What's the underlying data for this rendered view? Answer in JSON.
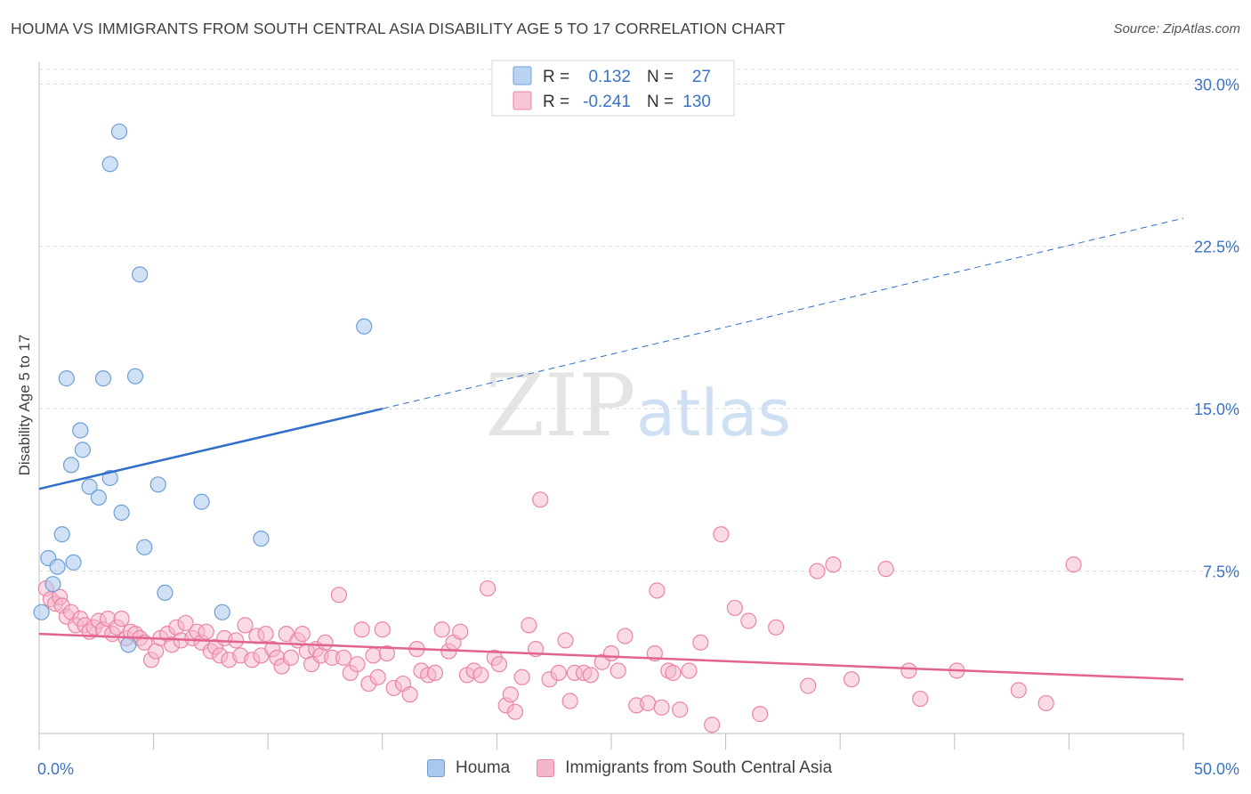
{
  "title": "HOUMA VS IMMIGRANTS FROM SOUTH CENTRAL ASIA DISABILITY AGE 5 TO 17 CORRELATION CHART",
  "source": "Source: ZipAtlas.com",
  "watermark": {
    "zip": "ZIP",
    "atlas": "atlas"
  },
  "colors": {
    "blue_fill": "#a9c8ee",
    "blue_stroke": "#6f9fd6",
    "blue_line": "#2f6fc9",
    "pink_fill": "#f5b6ca",
    "pink_stroke": "#ea85a6",
    "pink_line": "#e2638e",
    "value_text": "#3b73c4",
    "grid": "#d9d9d9"
  },
  "legend_stats": {
    "r_label": "R =",
    "n_label": "N =",
    "rows": [
      {
        "r": "0.132",
        "n": "27",
        "color": "blue"
      },
      {
        "r": "-0.241",
        "n": "130",
        "color": "pink"
      }
    ]
  },
  "legend_bottom": [
    "Houma",
    "Immigrants from South Central Asia"
  ],
  "chart_data": {
    "type": "scatter",
    "title": "HOUMA VS IMMIGRANTS FROM SOUTH CENTRAL ASIA DISABILITY AGE 5 TO 17 CORRELATION CHART",
    "xlabel": "",
    "ylabel": "Disability Age 5 to 17",
    "xlim": [
      0,
      50
    ],
    "ylim": [
      0,
      31
    ],
    "x_tick_labels": [
      "0.0%",
      "50.0%"
    ],
    "y_ticks": [
      7.5,
      15.0,
      22.5,
      30.0
    ],
    "y_tick_labels": [
      "7.5%",
      "15.0%",
      "22.5%",
      "30.0%"
    ],
    "grid": "horizontal dashed",
    "legend_placement": "top-center",
    "series": [
      {
        "name": "Houma",
        "color": "#a9c8ee",
        "trend": {
          "x0": 0,
          "y0": 11.3,
          "x1": 15,
          "y1": 15.0,
          "dashed_to_x": 50,
          "dashed_to_y": 23.8
        },
        "points": [
          [
            3.5,
            27.8
          ],
          [
            3.1,
            26.3
          ],
          [
            4.4,
            21.2
          ],
          [
            14.2,
            18.8
          ],
          [
            1.2,
            16.4
          ],
          [
            2.8,
            16.4
          ],
          [
            4.2,
            16.5
          ],
          [
            1.8,
            14.0
          ],
          [
            1.9,
            13.1
          ],
          [
            1.4,
            12.4
          ],
          [
            2.2,
            11.4
          ],
          [
            3.1,
            11.8
          ],
          [
            5.2,
            11.5
          ],
          [
            2.6,
            10.9
          ],
          [
            7.1,
            10.7
          ],
          [
            3.6,
            10.2
          ],
          [
            1.0,
            9.2
          ],
          [
            9.7,
            9.0
          ],
          [
            4.6,
            8.6
          ],
          [
            0.4,
            8.1
          ],
          [
            1.5,
            7.9
          ],
          [
            0.8,
            7.7
          ],
          [
            5.5,
            6.5
          ],
          [
            0.6,
            6.9
          ],
          [
            8.0,
            5.6
          ],
          [
            0.1,
            5.6
          ],
          [
            3.9,
            4.1
          ]
        ]
      },
      {
        "name": "Immigrants from South Central Asia",
        "color": "#f5b6ca",
        "trend": {
          "x0": 0,
          "y0": 4.6,
          "x1": 50,
          "y1": 2.5
        },
        "points": [
          [
            0.3,
            6.7
          ],
          [
            0.5,
            6.2
          ],
          [
            0.7,
            6.0
          ],
          [
            0.9,
            6.3
          ],
          [
            1.0,
            5.9
          ],
          [
            1.2,
            5.4
          ],
          [
            1.4,
            5.6
          ],
          [
            1.6,
            5.0
          ],
          [
            1.8,
            5.3
          ],
          [
            2.0,
            5.0
          ],
          [
            2.2,
            4.7
          ],
          [
            2.4,
            4.9
          ],
          [
            2.6,
            5.2
          ],
          [
            2.8,
            4.8
          ],
          [
            3.0,
            5.3
          ],
          [
            3.2,
            4.6
          ],
          [
            3.4,
            4.9
          ],
          [
            3.6,
            5.3
          ],
          [
            3.8,
            4.4
          ],
          [
            4.0,
            4.7
          ],
          [
            4.2,
            4.6
          ],
          [
            4.4,
            4.4
          ],
          [
            4.6,
            4.2
          ],
          [
            4.9,
            3.4
          ],
          [
            5.1,
            3.8
          ],
          [
            5.3,
            4.4
          ],
          [
            5.6,
            4.6
          ],
          [
            5.8,
            4.1
          ],
          [
            6.0,
            4.9
          ],
          [
            6.2,
            4.3
          ],
          [
            6.4,
            5.1
          ],
          [
            6.7,
            4.4
          ],
          [
            6.9,
            4.7
          ],
          [
            7.1,
            4.2
          ],
          [
            7.3,
            4.7
          ],
          [
            7.5,
            3.8
          ],
          [
            7.7,
            4.0
          ],
          [
            7.9,
            3.6
          ],
          [
            8.1,
            4.4
          ],
          [
            8.3,
            3.4
          ],
          [
            8.6,
            4.3
          ],
          [
            8.8,
            3.6
          ],
          [
            9.0,
            5.0
          ],
          [
            9.3,
            3.4
          ],
          [
            9.5,
            4.5
          ],
          [
            9.7,
            3.6
          ],
          [
            9.9,
            4.6
          ],
          [
            10.2,
            3.9
          ],
          [
            10.4,
            3.5
          ],
          [
            10.6,
            3.1
          ],
          [
            10.8,
            4.6
          ],
          [
            11.0,
            3.5
          ],
          [
            11.3,
            4.3
          ],
          [
            11.5,
            4.6
          ],
          [
            11.7,
            3.8
          ],
          [
            11.9,
            3.2
          ],
          [
            12.1,
            3.9
          ],
          [
            12.3,
            3.6
          ],
          [
            12.5,
            4.2
          ],
          [
            12.8,
            3.5
          ],
          [
            13.1,
            6.4
          ],
          [
            13.3,
            3.5
          ],
          [
            13.6,
            2.8
          ],
          [
            13.9,
            3.2
          ],
          [
            14.1,
            4.8
          ],
          [
            14.4,
            2.3
          ],
          [
            14.6,
            3.6
          ],
          [
            14.8,
            2.6
          ],
          [
            15.0,
            4.8
          ],
          [
            15.2,
            3.7
          ],
          [
            15.5,
            2.1
          ],
          [
            15.9,
            2.3
          ],
          [
            16.2,
            1.8
          ],
          [
            16.5,
            3.9
          ],
          [
            16.7,
            2.9
          ],
          [
            17.0,
            2.7
          ],
          [
            17.3,
            2.8
          ],
          [
            17.6,
            4.8
          ],
          [
            17.9,
            3.8
          ],
          [
            18.1,
            4.2
          ],
          [
            18.4,
            4.7
          ],
          [
            18.7,
            2.7
          ],
          [
            19.0,
            2.9
          ],
          [
            19.3,
            2.7
          ],
          [
            19.6,
            6.7
          ],
          [
            19.9,
            3.5
          ],
          [
            20.1,
            3.2
          ],
          [
            20.4,
            1.3
          ],
          [
            20.6,
            1.8
          ],
          [
            20.8,
            1.0
          ],
          [
            21.1,
            2.6
          ],
          [
            21.4,
            5.0
          ],
          [
            21.7,
            3.9
          ],
          [
            21.9,
            10.8
          ],
          [
            22.3,
            2.5
          ],
          [
            22.7,
            2.8
          ],
          [
            23.0,
            4.3
          ],
          [
            23.2,
            1.5
          ],
          [
            23.4,
            2.8
          ],
          [
            23.8,
            2.8
          ],
          [
            24.1,
            2.7
          ],
          [
            24.6,
            3.3
          ],
          [
            25.0,
            3.7
          ],
          [
            25.3,
            2.9
          ],
          [
            25.6,
            4.5
          ],
          [
            26.1,
            1.3
          ],
          [
            26.6,
            1.4
          ],
          [
            26.9,
            3.7
          ],
          [
            27.0,
            6.6
          ],
          [
            27.2,
            1.2
          ],
          [
            27.5,
            2.9
          ],
          [
            27.7,
            2.8
          ],
          [
            28.0,
            1.1
          ],
          [
            28.4,
            2.9
          ],
          [
            28.9,
            4.2
          ],
          [
            29.4,
            0.4
          ],
          [
            29.8,
            9.2
          ],
          [
            30.4,
            5.8
          ],
          [
            31.0,
            5.2
          ],
          [
            31.5,
            0.9
          ],
          [
            32.2,
            4.9
          ],
          [
            33.6,
            2.2
          ],
          [
            34.0,
            7.5
          ],
          [
            34.7,
            7.8
          ],
          [
            35.5,
            2.5
          ],
          [
            37.0,
            7.6
          ],
          [
            38.0,
            2.9
          ],
          [
            38.5,
            1.6
          ],
          [
            40.1,
            2.9
          ],
          [
            42.8,
            2.0
          ],
          [
            44.0,
            1.4
          ],
          [
            45.2,
            7.8
          ]
        ]
      }
    ]
  }
}
